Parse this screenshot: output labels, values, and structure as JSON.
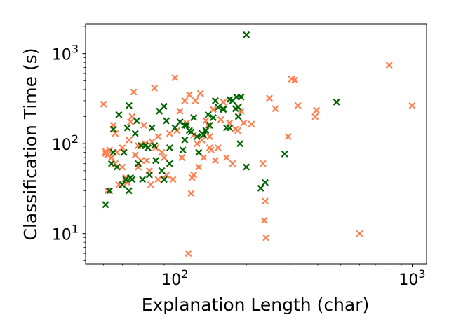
{
  "chart_data": {
    "type": "scatter",
    "xlabel": "Explanation Length (char)",
    "ylabel": "Classification Time (s)",
    "xscale": "log",
    "yscale": "log",
    "xlim": [
      42,
      1150
    ],
    "ylim": [
      4.6,
      2150
    ],
    "xticks": [
      {
        "value": 100,
        "base": "10",
        "exp": "2"
      },
      {
        "value": 1000,
        "base": "10",
        "exp": "3"
      }
    ],
    "yticks": [
      {
        "value": 10,
        "base": "10",
        "exp": "1"
      },
      {
        "value": 100,
        "base": "10",
        "exp": "2"
      },
      {
        "value": 1000,
        "base": "10",
        "exp": "3"
      }
    ],
    "grid": false,
    "marker": "x",
    "series": [
      {
        "color": "#ff7f50",
        "points": [
          [
            50,
            275
          ],
          [
            51,
            82
          ],
          [
            51,
            78
          ],
          [
            52,
            75
          ],
          [
            53,
            85
          ],
          [
            54,
            70
          ],
          [
            55,
            160
          ],
          [
            56,
            130
          ],
          [
            57,
            80
          ],
          [
            58,
            35
          ],
          [
            52,
            30
          ],
          [
            60,
            90
          ],
          [
            62,
            42
          ],
          [
            63,
            37
          ],
          [
            64,
            110
          ],
          [
            65,
            175
          ],
          [
            66,
            200
          ],
          [
            67,
            375
          ],
          [
            68,
            75
          ],
          [
            70,
            95
          ],
          [
            72,
            65
          ],
          [
            74,
            160
          ],
          [
            75,
            100
          ],
          [
            76,
            65
          ],
          [
            78,
            50
          ],
          [
            79,
            35
          ],
          [
            80,
            105
          ],
          [
            82,
            415
          ],
          [
            83,
            90
          ],
          [
            85,
            40
          ],
          [
            88,
            80
          ],
          [
            90,
            70
          ],
          [
            92,
            45
          ],
          [
            95,
            130
          ],
          [
            98,
            40
          ],
          [
            100,
            540
          ],
          [
            102,
            140
          ],
          [
            105,
            230
          ],
          [
            107,
            70
          ],
          [
            110,
            300
          ],
          [
            112,
            170
          ],
          [
            114,
            6
          ],
          [
            115,
            350
          ],
          [
            117,
            28
          ],
          [
            118,
            42
          ],
          [
            120,
            125
          ],
          [
            122,
            300
          ],
          [
            124,
            100
          ],
          [
            126,
            55
          ],
          [
            128,
            360
          ],
          [
            130,
            110
          ],
          [
            132,
            70
          ],
          [
            135,
            180
          ],
          [
            138,
            160
          ],
          [
            140,
            120
          ],
          [
            142,
            85
          ],
          [
            145,
            240
          ],
          [
            148,
            65
          ],
          [
            152,
            90
          ],
          [
            156,
            185
          ],
          [
            160,
            290
          ],
          [
            165,
            70
          ],
          [
            170,
            170
          ],
          [
            175,
            60
          ],
          [
            180,
            145
          ],
          [
            184,
            140
          ],
          [
            190,
            230
          ],
          [
            195,
            170
          ],
          [
            210,
            165
          ],
          [
            235,
            60
          ],
          [
            238,
            14
          ],
          [
            240,
            23
          ],
          [
            242,
            9
          ],
          [
            250,
            320
          ],
          [
            265,
            245
          ],
          [
            300,
            120
          ],
          [
            310,
            520
          ],
          [
            320,
            510
          ],
          [
            330,
            265
          ],
          [
            390,
            200
          ],
          [
            395,
            235
          ],
          [
            600,
            10
          ],
          [
            800,
            745
          ],
          [
            1000,
            265
          ],
          [
            56,
            60
          ],
          [
            60,
            55
          ],
          [
            70,
            55
          ],
          [
            85,
            120
          ],
          [
            120,
            45
          ],
          [
            140,
            90
          ]
        ]
      },
      {
        "color": "#006400",
        "points": [
          [
            51,
            21
          ],
          [
            53,
            30
          ],
          [
            54,
            60
          ],
          [
            55,
            80
          ],
          [
            55,
            145
          ],
          [
            57,
            55
          ],
          [
            58,
            210
          ],
          [
            60,
            35
          ],
          [
            61,
            80
          ],
          [
            62,
            40
          ],
          [
            63,
            150
          ],
          [
            64,
            265
          ],
          [
            64,
            30
          ],
          [
            65,
            42
          ],
          [
            66,
            40
          ],
          [
            68,
            130
          ],
          [
            69,
            180
          ],
          [
            70,
            60
          ],
          [
            72,
            95
          ],
          [
            73,
            40
          ],
          [
            75,
            95
          ],
          [
            77,
            90
          ],
          [
            78,
            45
          ],
          [
            80,
            150
          ],
          [
            82,
            95
          ],
          [
            83,
            65
          ],
          [
            86,
            230
          ],
          [
            88,
            50
          ],
          [
            90,
            260
          ],
          [
            90,
            40
          ],
          [
            92,
            180
          ],
          [
            95,
            90
          ],
          [
            100,
            150
          ],
          [
            105,
            175
          ],
          [
            108,
            85
          ],
          [
            110,
            160
          ],
          [
            112,
            160
          ],
          [
            115,
            140
          ],
          [
            117,
            135
          ],
          [
            120,
            195
          ],
          [
            124,
            120
          ],
          [
            126,
            80
          ],
          [
            130,
            130
          ],
          [
            132,
            125
          ],
          [
            135,
            140
          ],
          [
            138,
            210
          ],
          [
            140,
            160
          ],
          [
            145,
            195
          ],
          [
            148,
            300
          ],
          [
            152,
            255
          ],
          [
            160,
            240
          ],
          [
            165,
            150
          ],
          [
            170,
            150
          ],
          [
            175,
            300
          ],
          [
            180,
            245
          ],
          [
            182,
            330
          ],
          [
            185,
            255
          ],
          [
            188,
            100
          ],
          [
            190,
            330
          ],
          [
            200,
            1620
          ],
          [
            200,
            55
          ],
          [
            230,
            32
          ],
          [
            240,
            37
          ],
          [
            290,
            77
          ],
          [
            480,
            290
          ],
          [
            95,
            60
          ],
          [
            110,
            110
          ],
          [
            160,
            245
          ],
          [
            170,
            310
          ],
          [
            185,
            200
          ]
        ]
      }
    ]
  }
}
